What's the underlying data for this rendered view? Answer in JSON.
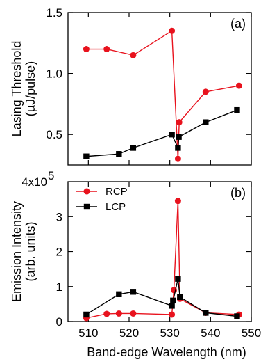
{
  "chart_data": [
    {
      "type": "line",
      "panel_label": "(a)",
      "ylabel": "Lasing Threshold",
      "ylabel2": "(µJ/pulse)",
      "ylim": [
        0.25,
        1.5
      ],
      "yticks": [
        0.5,
        1.0,
        1.5
      ],
      "ytick_labels": [
        "0.5",
        "1.0",
        "1.5"
      ],
      "xlim": [
        505,
        550
      ],
      "series": [
        {
          "name": "RCP",
          "color": "#e8121d",
          "marker": "circle",
          "x": [
            509.5,
            514.5,
            521,
            530.5,
            532,
            532.3,
            538.8,
            547
          ],
          "y": [
            1.2,
            1.2,
            1.15,
            1.35,
            0.3,
            0.6,
            0.85,
            0.9
          ]
        },
        {
          "name": "LCP",
          "color": "#000000",
          "marker": "square",
          "x": [
            509.5,
            517.5,
            521,
            530.5,
            532,
            532.2,
            538.8,
            546.5
          ],
          "y": [
            0.32,
            0.34,
            0.39,
            0.5,
            0.39,
            0.48,
            0.6,
            0.7
          ]
        }
      ]
    },
    {
      "type": "line",
      "panel_label": "(b)",
      "ylabel": "Emission Intensity",
      "ylabel2": "(arb. units)",
      "ylim": [
        0,
        400000
      ],
      "yticks": [
        0,
        100000,
        200000,
        300000
      ],
      "ytick_labels": [
        "0",
        "1",
        "2",
        "3"
      ],
      "ymax_label_base": "4x10",
      "ymax_label_exp": "5",
      "xlabel": "Band-edge Wavelength (nm)",
      "xlim": [
        505,
        550
      ],
      "xticks": [
        510,
        520,
        530,
        540,
        550
      ],
      "xtick_labels": [
        "510",
        "520",
        "530",
        "540",
        "550"
      ],
      "legend_position": "top-left",
      "series": [
        {
          "name": "RCP",
          "color": "#e8121d",
          "marker": "circle",
          "x": [
            509.5,
            514.5,
            517.5,
            521,
            530.5,
            531,
            532,
            532.5,
            538.8,
            547
          ],
          "y": [
            10000,
            22000,
            23000,
            23000,
            20000,
            90000,
            345000,
            65000,
            25000,
            20000
          ]
        },
        {
          "name": "LCP",
          "color": "#000000",
          "marker": "square",
          "x": [
            509.5,
            517.5,
            521,
            530.5,
            530.8,
            532,
            532.5,
            538.8,
            546.5
          ],
          "y": [
            20000,
            78000,
            85000,
            45000,
            60000,
            122000,
            70000,
            25000,
            15000
          ]
        }
      ]
    }
  ]
}
